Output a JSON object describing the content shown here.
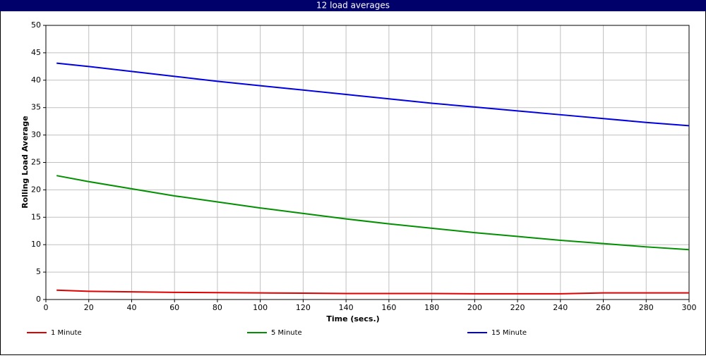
{
  "chart_data": {
    "type": "line",
    "title": "12 load averages",
    "x_label": "Time (secs.)",
    "y_label": "Rolling Load Average",
    "x": [
      5,
      20,
      40,
      60,
      80,
      100,
      120,
      140,
      160,
      180,
      200,
      220,
      240,
      260,
      280,
      300
    ],
    "series": [
      {
        "name": "1 Minute",
        "color": "#e00000",
        "values": [
          1.7,
          1.5,
          1.4,
          1.3,
          1.25,
          1.2,
          1.15,
          1.1,
          1.1,
          1.1,
          1.05,
          1.05,
          1.05,
          1.2,
          1.2,
          1.2
        ]
      },
      {
        "name": "5 Minute",
        "color": "#009000",
        "values": [
          22.6,
          21.5,
          20.2,
          18.9,
          17.8,
          16.7,
          15.7,
          14.7,
          13.8,
          13.0,
          12.2,
          11.5,
          10.8,
          10.2,
          9.6,
          9.1
        ]
      },
      {
        "name": "15 Minute",
        "color": "#0000e0",
        "values": [
          43.1,
          42.5,
          41.6,
          40.7,
          39.8,
          39.0,
          38.2,
          37.4,
          36.6,
          35.8,
          35.1,
          34.4,
          33.7,
          33.0,
          32.3,
          31.7
        ]
      }
    ],
    "xlim": [
      0,
      300
    ],
    "xticks": [
      0,
      20,
      40,
      60,
      80,
      100,
      120,
      140,
      160,
      180,
      200,
      220,
      240,
      260,
      280,
      300
    ],
    "ylim": [
      0,
      50
    ],
    "yticks": [
      0,
      5,
      10,
      15,
      20,
      25,
      30,
      35,
      40,
      45,
      50
    ],
    "grid": true
  }
}
